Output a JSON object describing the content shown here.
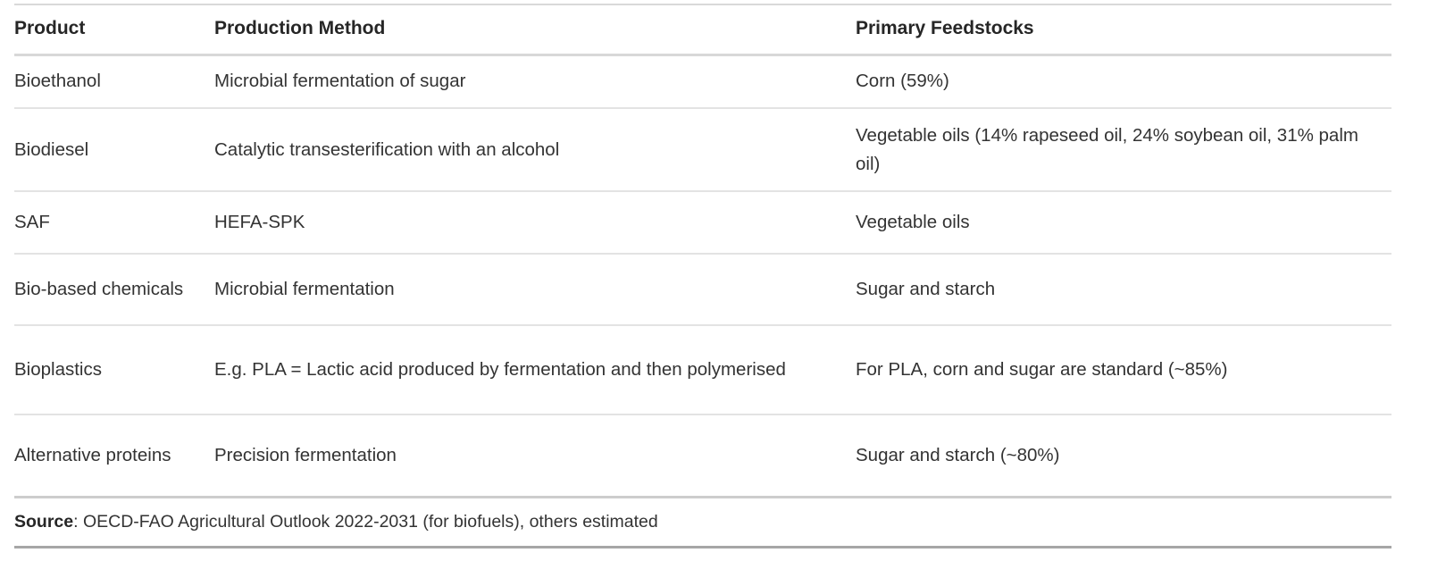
{
  "table": {
    "columns": {
      "product": "Product",
      "method": "Production Method",
      "feedstocks": "Primary Feedstocks"
    },
    "rows": [
      {
        "product": "Bioethanol",
        "method": "Microbial fermentation of sugar",
        "feedstocks": "Corn (59%)"
      },
      {
        "product": "Biodiesel",
        "method": "Catalytic transesterification with an alcohol",
        "feedstocks": "Vegetable oils (14% rapeseed oil, 24% soybean oil, 31% palm oil)"
      },
      {
        "product": "SAF",
        "method": "HEFA-SPK",
        "feedstocks": "Vegetable oils"
      },
      {
        "product": "Bio-based chemicals",
        "method": "Microbial fermentation",
        "feedstocks": "Sugar and starch"
      },
      {
        "product": "Bioplastics",
        "method": "E.g. PLA = Lactic acid produced by fermentation and then polymerised",
        "feedstocks": "For PLA, corn and sugar are standard (~85%)"
      },
      {
        "product": "Alternative proteins",
        "method": "Precision fermentation",
        "feedstocks": "Sugar and starch (~80%)"
      }
    ],
    "footer": {
      "label": "Source",
      "text": ": OECD-FAO Agricultural Outlook 2022-2031 (for biofuels), others estimated"
    }
  },
  "colors": {
    "border_light": "#e3e3e3",
    "border_header": "#d8d8d8",
    "border_bottom": "#a6a6a6",
    "text_body": "#333333",
    "text_heading": "#262626"
  }
}
